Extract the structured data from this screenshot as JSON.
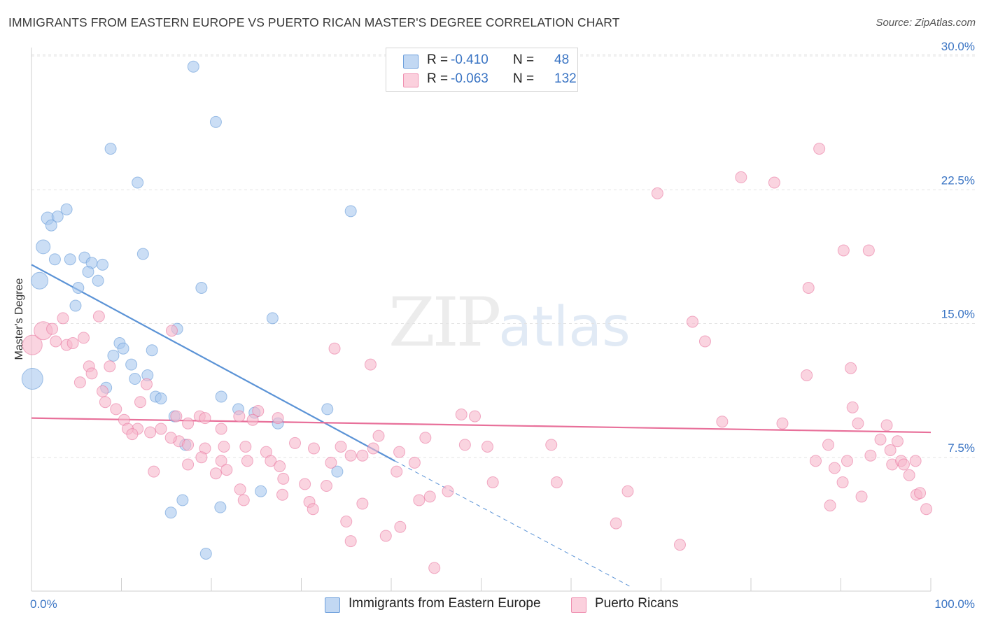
{
  "title": "IMMIGRANTS FROM EASTERN EUROPE VS PUERTO RICAN MASTER'S DEGREE CORRELATION CHART",
  "source": "Source: ZipAtlas.com",
  "watermark": {
    "zip": "ZIP",
    "atlas": "atlas"
  },
  "legend": {
    "r_label": "R =",
    "n_label": "N =",
    "rows": [
      {
        "r": "-0.410",
        "n": "48",
        "color": "#a9c8ee"
      },
      {
        "r": "-0.063",
        "n": "132",
        "color": "#f7b7cb"
      }
    ]
  },
  "bottom_legend": [
    {
      "label": "Immigrants from Eastern Europe",
      "color": "#a9c8ee"
    },
    {
      "label": "Puerto Ricans",
      "color": "#f7b7cb"
    }
  ],
  "chart_data": {
    "type": "scatter",
    "title": "IMMIGRANTS FROM EASTERN EUROPE VS PUERTO RICAN MASTER'S DEGREE CORRELATION CHART",
    "xlabel": "",
    "ylabel": "Master's Degree",
    "xlim": [
      0,
      100
    ],
    "ylim": [
      0,
      30
    ],
    "x_tick_labels": [
      "0.0%",
      "100.0%"
    ],
    "y_tick_labels": [
      "7.5%",
      "15.0%",
      "22.5%",
      "30.0%"
    ],
    "y_ticks": [
      7.5,
      15.0,
      22.5,
      30.0
    ],
    "grid": true,
    "series": [
      {
        "name": "Immigrants from Eastern Europe",
        "color": "#5b93d6",
        "fill": "#a9c8ee",
        "trend": {
          "x": [
            0,
            40.4
          ],
          "y": [
            18.3,
            7.3
          ],
          "dashed_to": [
            66.8,
            0.2
          ]
        },
        "points": [
          [
            18.0,
            29.4,
            8
          ],
          [
            20.5,
            26.3,
            8
          ],
          [
            8.8,
            24.8,
            8
          ],
          [
            11.8,
            22.9,
            8
          ],
          [
            1.8,
            20.9,
            9
          ],
          [
            2.9,
            21.0,
            8
          ],
          [
            3.9,
            21.4,
            8
          ],
          [
            2.2,
            20.5,
            8
          ],
          [
            35.5,
            21.3,
            8
          ],
          [
            1.3,
            19.3,
            10
          ],
          [
            2.6,
            18.6,
            8
          ],
          [
            4.3,
            18.6,
            8
          ],
          [
            5.9,
            18.7,
            8
          ],
          [
            6.7,
            18.4,
            8
          ],
          [
            7.9,
            18.3,
            8
          ],
          [
            12.4,
            18.9,
            8
          ],
          [
            6.3,
            17.9,
            8
          ],
          [
            0.9,
            17.4,
            12
          ],
          [
            7.4,
            17.4,
            8
          ],
          [
            5.2,
            17.0,
            8
          ],
          [
            18.9,
            17.0,
            8
          ],
          [
            4.9,
            16.0,
            8
          ],
          [
            26.8,
            15.3,
            8
          ],
          [
            16.2,
            14.7,
            8
          ],
          [
            9.8,
            13.9,
            8
          ],
          [
            10.2,
            13.6,
            8
          ],
          [
            13.4,
            13.5,
            8
          ],
          [
            9.1,
            13.2,
            8
          ],
          [
            11.1,
            12.7,
            8
          ],
          [
            12.9,
            12.1,
            8
          ],
          [
            11.5,
            11.9,
            8
          ],
          [
            8.3,
            11.4,
            8
          ],
          [
            0.1,
            11.9,
            15
          ],
          [
            13.8,
            10.9,
            8
          ],
          [
            14.4,
            10.8,
            8
          ],
          [
            21.1,
            10.9,
            8
          ],
          [
            23.0,
            10.2,
            8
          ],
          [
            32.9,
            10.2,
            8
          ],
          [
            15.9,
            9.8,
            8
          ],
          [
            24.8,
            10.0,
            8
          ],
          [
            27.4,
            9.4,
            8
          ],
          [
            17.1,
            8.2,
            8
          ],
          [
            34.0,
            6.7,
            8
          ],
          [
            16.8,
            5.1,
            8
          ],
          [
            25.5,
            5.6,
            8
          ],
          [
            21.0,
            4.7,
            8
          ],
          [
            15.5,
            4.4,
            8
          ],
          [
            19.4,
            2.1,
            8
          ]
        ]
      },
      {
        "name": "Puerto Ricans",
        "color": "#e8709a",
        "fill": "#f7b7cb",
        "trend": {
          "x": [
            0,
            100
          ],
          "y": [
            9.7,
            8.9
          ]
        },
        "points": [
          [
            0.1,
            13.8,
            14
          ],
          [
            1.3,
            14.6,
            13
          ],
          [
            2.3,
            14.7,
            8
          ],
          [
            3.5,
            15.3,
            8
          ],
          [
            2.7,
            14.0,
            8
          ],
          [
            3.9,
            13.8,
            8
          ],
          [
            4.6,
            13.9,
            8
          ],
          [
            5.8,
            14.2,
            8
          ],
          [
            7.5,
            15.4,
            8
          ],
          [
            15.6,
            14.6,
            8
          ],
          [
            6.4,
            12.6,
            8
          ],
          [
            8.7,
            12.6,
            8
          ],
          [
            6.7,
            12.2,
            8
          ],
          [
            5.4,
            11.7,
            8
          ],
          [
            12.8,
            11.6,
            8
          ],
          [
            7.9,
            11.2,
            8
          ],
          [
            8.2,
            10.6,
            8
          ],
          [
            9.4,
            10.2,
            8
          ],
          [
            12.1,
            10.6,
            8
          ],
          [
            10.3,
            9.6,
            8
          ],
          [
            11.8,
            9.1,
            8
          ],
          [
            13.2,
            8.9,
            8
          ],
          [
            10.7,
            9.1,
            8
          ],
          [
            11.2,
            8.8,
            8
          ],
          [
            14.4,
            9.1,
            8
          ],
          [
            16.1,
            9.8,
            8
          ],
          [
            17.4,
            9.4,
            8
          ],
          [
            18.7,
            9.8,
            8
          ],
          [
            19.3,
            9.7,
            8
          ],
          [
            23.1,
            9.8,
            8
          ],
          [
            25.2,
            10.1,
            8
          ],
          [
            27.4,
            9.7,
            8
          ],
          [
            21.1,
            9.1,
            8
          ],
          [
            24.6,
            9.6,
            8
          ],
          [
            16.4,
            8.4,
            8
          ],
          [
            15.5,
            8.6,
            8
          ],
          [
            17.4,
            8.2,
            8
          ],
          [
            19.3,
            8.0,
            8
          ],
          [
            21.4,
            8.1,
            8
          ],
          [
            23.8,
            8.1,
            8
          ],
          [
            29.3,
            8.3,
            8
          ],
          [
            31.4,
            8.0,
            8
          ],
          [
            34.4,
            8.1,
            8
          ],
          [
            35.5,
            7.6,
            8
          ],
          [
            38.0,
            8.0,
            8
          ],
          [
            40.9,
            7.8,
            8
          ],
          [
            26.1,
            7.8,
            8
          ],
          [
            21.1,
            7.3,
            8
          ],
          [
            18.9,
            7.5,
            8
          ],
          [
            24.0,
            7.3,
            8
          ],
          [
            26.6,
            7.3,
            8
          ],
          [
            27.6,
            7.0,
            8
          ],
          [
            33.3,
            7.2,
            8
          ],
          [
            36.8,
            7.6,
            8
          ],
          [
            42.6,
            7.2,
            8
          ],
          [
            13.6,
            6.7,
            8
          ],
          [
            17.4,
            7.1,
            8
          ],
          [
            20.5,
            6.6,
            8
          ],
          [
            21.7,
            6.8,
            8
          ],
          [
            28.0,
            6.3,
            8
          ],
          [
            30.4,
            6.0,
            8
          ],
          [
            32.8,
            5.9,
            8
          ],
          [
            40.6,
            6.7,
            8
          ],
          [
            23.2,
            5.7,
            8
          ],
          [
            27.9,
            5.4,
            8
          ],
          [
            30.9,
            5.0,
            8
          ],
          [
            31.3,
            4.6,
            8
          ],
          [
            23.6,
            5.1,
            8
          ],
          [
            36.8,
            4.9,
            8
          ],
          [
            43.1,
            5.1,
            8
          ],
          [
            44.3,
            5.3,
            8
          ],
          [
            46.3,
            5.6,
            8
          ],
          [
            35.0,
            3.9,
            8
          ],
          [
            35.5,
            2.8,
            8
          ],
          [
            39.4,
            3.1,
            8
          ],
          [
            41.0,
            3.6,
            8
          ],
          [
            44.8,
            1.3,
            8
          ],
          [
            38.6,
            8.7,
            8
          ],
          [
            43.8,
            8.6,
            8
          ],
          [
            48.2,
            8.2,
            8
          ],
          [
            50.7,
            8.1,
            8
          ],
          [
            57.8,
            8.2,
            8
          ],
          [
            47.8,
            9.9,
            8
          ],
          [
            49.3,
            9.8,
            8
          ],
          [
            51.3,
            6.1,
            8
          ],
          [
            58.4,
            6.1,
            8
          ],
          [
            66.3,
            5.6,
            8
          ],
          [
            65.0,
            3.8,
            8
          ],
          [
            72.1,
            2.6,
            8
          ],
          [
            33.7,
            13.6,
            8
          ],
          [
            37.7,
            12.7,
            8
          ],
          [
            73.5,
            15.1,
            8
          ],
          [
            74.9,
            14.0,
            8
          ],
          [
            69.6,
            22.3,
            8
          ],
          [
            78.9,
            23.2,
            8
          ],
          [
            82.6,
            22.9,
            8
          ],
          [
            87.6,
            24.8,
            8
          ],
          [
            90.3,
            19.1,
            8
          ],
          [
            93.1,
            19.1,
            8
          ],
          [
            86.4,
            17.0,
            8
          ],
          [
            76.8,
            9.5,
            8
          ],
          [
            83.5,
            9.4,
            8
          ],
          [
            86.2,
            12.1,
            8
          ],
          [
            91.1,
            12.5,
            8
          ],
          [
            91.3,
            10.3,
            8
          ],
          [
            91.9,
            9.4,
            8
          ],
          [
            95.1,
            9.3,
            8
          ],
          [
            94.4,
            8.5,
            8
          ],
          [
            96.3,
            8.4,
            8
          ],
          [
            95.5,
            7.9,
            8
          ],
          [
            88.6,
            8.2,
            8
          ],
          [
            87.2,
            7.3,
            8
          ],
          [
            89.3,
            6.9,
            8
          ],
          [
            90.7,
            7.3,
            8
          ],
          [
            93.3,
            7.6,
            8
          ],
          [
            95.7,
            7.1,
            8
          ],
          [
            96.7,
            7.3,
            8
          ],
          [
            97.0,
            7.1,
            8
          ],
          [
            97.6,
            6.5,
            8
          ],
          [
            98.3,
            7.3,
            8
          ],
          [
            90.2,
            6.1,
            8
          ],
          [
            92.3,
            5.3,
            8
          ],
          [
            98.4,
            5.4,
            8
          ],
          [
            98.8,
            5.5,
            8
          ],
          [
            99.5,
            4.6,
            8
          ],
          [
            88.8,
            4.8,
            8
          ]
        ]
      }
    ]
  }
}
